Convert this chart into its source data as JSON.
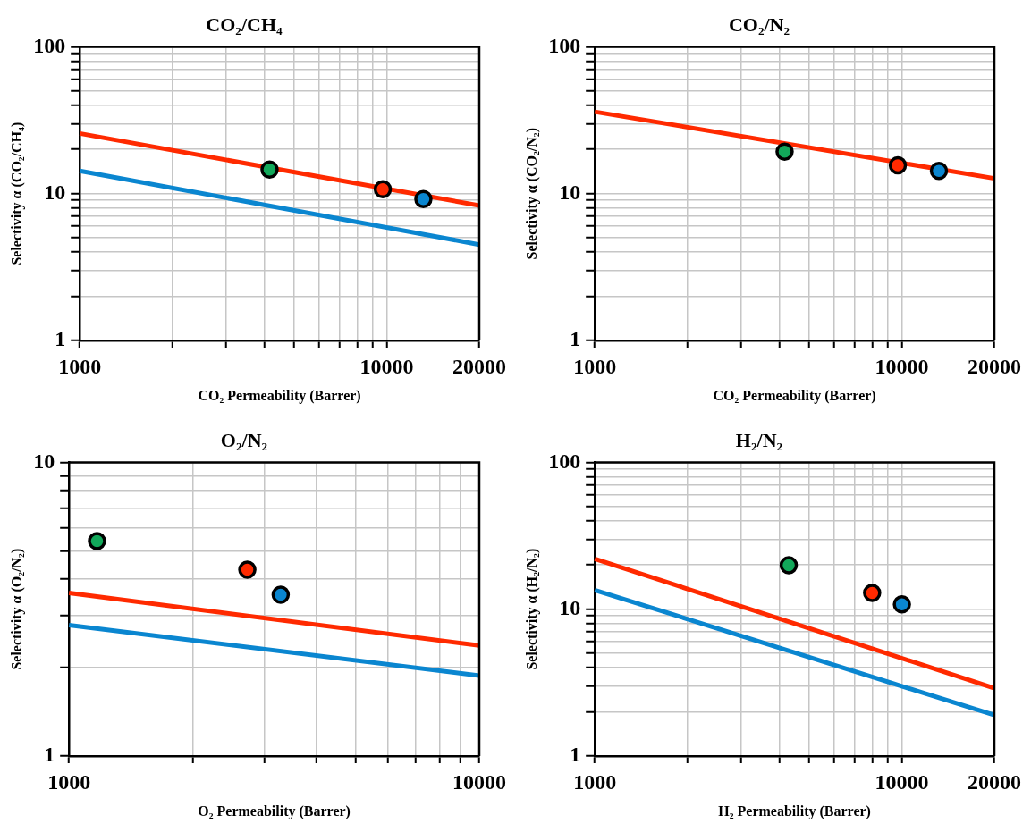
{
  "chart_data": [
    {
      "type": "scatter",
      "title": "CO₂/CH₄",
      "xlabel": "CO₂ Permeability (Barrer)",
      "ylabel": "Selectivity α (CO₂/CH₄)",
      "log": "xy",
      "grid": true,
      "legend": false,
      "marker": "circle",
      "xlim": [
        1000,
        20000
      ],
      "ylim": [
        1,
        100
      ],
      "xticks": [
        1000,
        {
          "value": 2000,
          "label": null
        },
        {
          "value": 3000,
          "label": null
        },
        {
          "value": 4000,
          "label": null
        },
        {
          "value": 5000,
          "label": null
        },
        {
          "value": 6000,
          "label": null
        },
        {
          "value": 7000,
          "label": null
        },
        {
          "value": 8000,
          "label": null
        },
        {
          "value": 9000,
          "label": null
        },
        10000,
        20000
      ],
      "yticks": [
        1,
        {
          "value": 2,
          "label": null
        },
        {
          "value": 3,
          "label": null
        },
        {
          "value": 4,
          "label": null
        },
        {
          "value": 5,
          "label": null
        },
        {
          "value": 6,
          "label": null
        },
        {
          "value": 7,
          "label": null
        },
        {
          "value": 8,
          "label": null
        },
        {
          "value": 9,
          "label": null
        },
        10,
        {
          "value": 20,
          "label": null
        },
        {
          "value": 30,
          "label": null
        },
        {
          "value": 40,
          "label": null
        },
        {
          "value": 50,
          "label": null
        },
        {
          "value": 60,
          "label": null
        },
        {
          "value": 70,
          "label": null
        },
        {
          "value": 80,
          "label": null
        },
        {
          "value": 90,
          "label": null
        },
        100
      ],
      "series": [
        {
          "type": "line",
          "marker": "none",
          "color": "#ff2a00",
          "x": [
            1000,
            20000
          ],
          "values": [
            25.7,
            8.3
          ]
        },
        {
          "type": "line",
          "marker": "none",
          "color": "#0a86d0",
          "x": [
            1000,
            20000
          ],
          "values": [
            14.3,
            4.5
          ]
        },
        {
          "type": "scatter",
          "color": "#12a85a",
          "x": [
            4150
          ],
          "values": [
            14.6
          ]
        },
        {
          "type": "scatter",
          "color": "#ff2a00",
          "x": [
            9700
          ],
          "values": [
            10.7
          ]
        },
        {
          "type": "scatter",
          "color": "#0a86d0",
          "x": [
            13150
          ],
          "values": [
            9.2
          ]
        }
      ]
    },
    {
      "type": "scatter",
      "title": "CO₂/N₂",
      "xlabel": "CO₂ Permeability (Barrer)",
      "ylabel": "Selectivity α (CO₂/N₂)",
      "log": "xy",
      "grid": true,
      "legend": false,
      "marker": "circle",
      "xlim": [
        1000,
        20000
      ],
      "ylim": [
        1,
        100
      ],
      "xticks": [
        1000,
        {
          "value": 2000,
          "label": null
        },
        {
          "value": 3000,
          "label": null
        },
        {
          "value": 4000,
          "label": null
        },
        {
          "value": 5000,
          "label": null
        },
        {
          "value": 6000,
          "label": null
        },
        {
          "value": 7000,
          "label": null
        },
        {
          "value": 8000,
          "label": null
        },
        {
          "value": 9000,
          "label": null
        },
        10000,
        20000
      ],
      "yticks": [
        1,
        {
          "value": 2,
          "label": null
        },
        {
          "value": 3,
          "label": null
        },
        {
          "value": 4,
          "label": null
        },
        {
          "value": 5,
          "label": null
        },
        {
          "value": 6,
          "label": null
        },
        {
          "value": 7,
          "label": null
        },
        {
          "value": 8,
          "label": null
        },
        {
          "value": 9,
          "label": null
        },
        10,
        {
          "value": 20,
          "label": null
        },
        {
          "value": 30,
          "label": null
        },
        {
          "value": 40,
          "label": null
        },
        {
          "value": 50,
          "label": null
        },
        {
          "value": 60,
          "label": null
        },
        {
          "value": 70,
          "label": null
        },
        {
          "value": 80,
          "label": null
        },
        {
          "value": 90,
          "label": null
        },
        100
      ],
      "series": [
        {
          "type": "line",
          "marker": "none",
          "color": "#ff2a00",
          "x": [
            1000,
            20000
          ],
          "values": [
            36.1,
            12.7
          ]
        },
        {
          "type": "scatter",
          "color": "#12a85a",
          "x": [
            4150
          ],
          "values": [
            19.3
          ]
        },
        {
          "type": "scatter",
          "color": "#ff2a00",
          "x": [
            9700
          ],
          "values": [
            15.6
          ]
        },
        {
          "type": "scatter",
          "color": "#0a86d0",
          "x": [
            13200
          ],
          "values": [
            14.3
          ]
        }
      ]
    },
    {
      "type": "scatter",
      "title": "O₂/N₂",
      "xlabel": "O₂ Permeability (Barrer)",
      "ylabel": "Selectivity α (O₂/N₂)",
      "log": "xy",
      "grid": true,
      "legend": false,
      "marker": "circle",
      "xlim": [
        1000,
        10000
      ],
      "ylim": [
        1,
        10
      ],
      "xticks": [
        1000,
        {
          "value": 2000,
          "label": null
        },
        {
          "value": 3000,
          "label": null
        },
        {
          "value": 4000,
          "label": null
        },
        {
          "value": 5000,
          "label": null
        },
        {
          "value": 6000,
          "label": null
        },
        {
          "value": 7000,
          "label": null
        },
        {
          "value": 8000,
          "label": null
        },
        {
          "value": 9000,
          "label": null
        },
        10000
      ],
      "yticks": [
        1,
        {
          "value": 2,
          "label": null
        },
        {
          "value": 3,
          "label": null
        },
        {
          "value": 4,
          "label": null
        },
        {
          "value": 5,
          "label": null
        },
        {
          "value": 6,
          "label": null
        },
        {
          "value": 7,
          "label": null
        },
        {
          "value": 8,
          "label": null
        },
        {
          "value": 9,
          "label": null
        },
        10
      ],
      "series": [
        {
          "type": "line",
          "marker": "none",
          "color": "#ff2a00",
          "x": [
            1000,
            10000
          ],
          "values": [
            3.59,
            2.38
          ]
        },
        {
          "type": "line",
          "marker": "none",
          "color": "#0a86d0",
          "x": [
            1000,
            10000
          ],
          "values": [
            2.79,
            1.88
          ]
        },
        {
          "type": "scatter",
          "color": "#12a85a",
          "x": [
            1170
          ],
          "values": [
            5.39
          ]
        },
        {
          "type": "scatter",
          "color": "#ff2a00",
          "x": [
            2720
          ],
          "values": [
            4.31
          ]
        },
        {
          "type": "scatter",
          "color": "#0a86d0",
          "x": [
            3280
          ],
          "values": [
            3.54
          ]
        }
      ]
    },
    {
      "type": "scatter",
      "title": "H₂/N₂",
      "xlabel": "H₂ Permeability (Barrer)",
      "ylabel": "Selectivity α (H₂/N₂)",
      "log": "xy",
      "grid": true,
      "legend": false,
      "marker": "circle",
      "xlim": [
        1000,
        20000
      ],
      "ylim": [
        1,
        100
      ],
      "xticks": [
        1000,
        {
          "value": 2000,
          "label": null
        },
        {
          "value": 3000,
          "label": null
        },
        {
          "value": 4000,
          "label": null
        },
        {
          "value": 5000,
          "label": null
        },
        {
          "value": 6000,
          "label": null
        },
        {
          "value": 7000,
          "label": null
        },
        {
          "value": 8000,
          "label": null
        },
        {
          "value": 9000,
          "label": null
        },
        10000,
        20000
      ],
      "yticks": [
        1,
        {
          "value": 2,
          "label": null
        },
        {
          "value": 3,
          "label": null
        },
        {
          "value": 4,
          "label": null
        },
        {
          "value": 5,
          "label": null
        },
        {
          "value": 6,
          "label": null
        },
        {
          "value": 7,
          "label": null
        },
        {
          "value": 8,
          "label": null
        },
        {
          "value": 9,
          "label": null
        },
        10,
        {
          "value": 20,
          "label": null
        },
        {
          "value": 30,
          "label": null
        },
        {
          "value": 40,
          "label": null
        },
        {
          "value": 50,
          "label": null
        },
        {
          "value": 60,
          "label": null
        },
        {
          "value": 70,
          "label": null
        },
        {
          "value": 80,
          "label": null
        },
        {
          "value": 90,
          "label": null
        },
        100
      ],
      "series": [
        {
          "type": "line",
          "marker": "none",
          "color": "#ff2a00",
          "x": [
            1000,
            20000
          ],
          "values": [
            22,
            2.9
          ]
        },
        {
          "type": "line",
          "marker": "none",
          "color": "#0a86d0",
          "x": [
            1000,
            20000
          ],
          "values": [
            13.5,
            1.9
          ]
        },
        {
          "type": "scatter",
          "color": "#12a85a",
          "x": [
            4280
          ],
          "values": [
            19.9
          ]
        },
        {
          "type": "scatter",
          "color": "#ff2a00",
          "x": [
            8000
          ],
          "values": [
            12.9
          ]
        },
        {
          "type": "scatter",
          "color": "#0a86d0",
          "x": [
            10000
          ],
          "values": [
            10.8
          ]
        }
      ]
    }
  ]
}
